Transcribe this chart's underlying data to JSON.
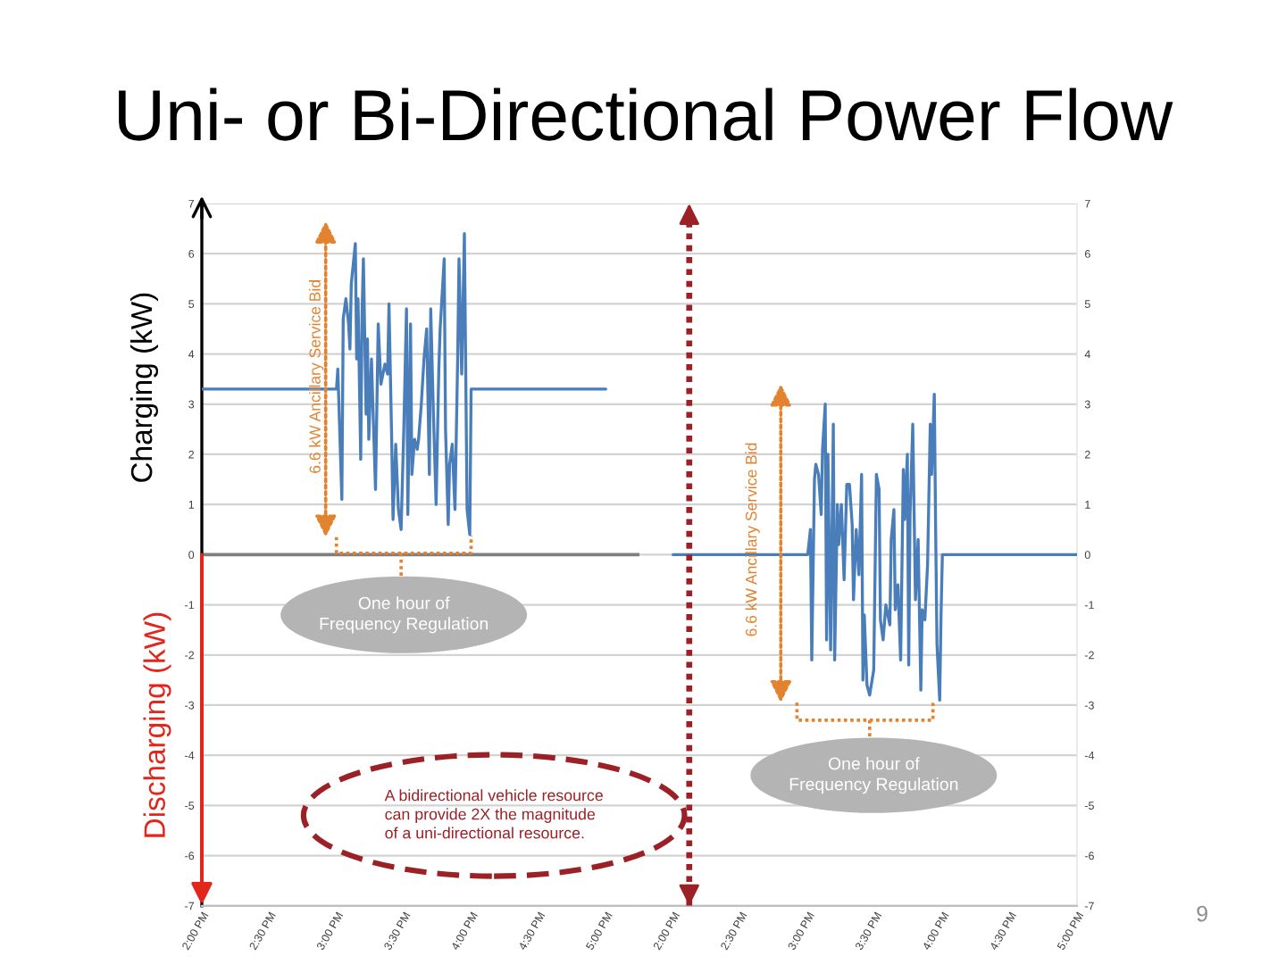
{
  "chart_data": [
    {
      "type": "line",
      "title": "Uni- or Bi-Directional Power Flow",
      "ylabel": "Charging (kW)",
      "annotations": [
        "6.6 kW Ancillary Service Bid",
        "One hour of\nFrequency Regulation",
        "A bidirectional vehicle resource\ncan provide 2X the magnitude\nof a uni-directional resource.",
        "Discharging (kW)"
      ],
      "x": [
        14,
        15.0,
        15.01,
        15.04,
        15.05,
        15.07,
        15.09,
        15.1,
        15.11,
        15.14,
        15.15,
        15.16,
        15.18,
        15.19,
        15.2,
        15.22,
        15.23,
        15.24,
        15.26,
        15.27,
        15.29,
        15.31,
        15.33,
        15.36,
        15.38,
        15.39,
        15.41,
        15.42,
        15.44,
        15.46,
        15.48,
        15.5,
        15.52,
        15.53,
        15.55,
        15.56,
        15.58,
        15.6,
        15.61,
        15.63,
        15.65,
        15.67,
        15.69,
        15.7,
        15.72,
        15.74,
        15.76,
        15.77,
        15.8,
        15.81,
        15.83,
        15.84,
        15.86,
        15.88,
        15.9,
        15.91,
        15.93,
        15.95,
        15.97,
        15.99,
        16.0,
        17
      ],
      "series": [
        {
          "color": "#4a7ebb",
          "values": [
            3.3,
            3.3,
            3.7,
            1.1,
            4.7,
            5.1,
            4.6,
            4.1,
            5.4,
            6.2,
            3.9,
            5.1,
            1.9,
            4.8,
            5.9,
            2.8,
            4.3,
            2.3,
            3.9,
            3.0,
            1.3,
            4.6,
            3.4,
            3.8,
            3.6,
            5.0,
            2.3,
            0.7,
            2.2,
            0.9,
            0.5,
            2.5,
            4.9,
            0.8,
            4.6,
            1.6,
            2.3,
            2.1,
            2.3,
            3.0,
            3.9,
            4.5,
            1.6,
            4.9,
            2.8,
            1.0,
            3.7,
            4.5,
            5.9,
            2.5,
            0.6,
            1.8,
            2.2,
            0.9,
            3.9,
            5.9,
            3.6,
            6.4,
            0.9,
            0.4,
            3.3,
            3.3
          ]
        }
      ],
      "xlim": [
        14,
        17.25
      ],
      "xticks": [
        {
          "value": 14,
          "label": "2:00 PM"
        },
        {
          "value": 14.5,
          "label": "2:30 PM"
        },
        {
          "value": 15,
          "label": "3:00 PM"
        },
        {
          "value": 15.5,
          "label": "3:30 PM"
        },
        {
          "value": 16,
          "label": "4:00 PM"
        },
        {
          "value": 16.5,
          "label": "4:30 PM"
        },
        {
          "value": 17,
          "label": "5:00 PM"
        }
      ],
      "ylim": [
        -7,
        7
      ],
      "yticks": [
        -7,
        -6,
        -5,
        -4,
        -3,
        -2,
        -1,
        0,
        1,
        2,
        3,
        4,
        5,
        6,
        7
      ],
      "grid": "y",
      "ref_lines": [
        {
          "axis": "y",
          "value": 0,
          "color": "#7f7f7f"
        }
      ]
    },
    {
      "type": "line",
      "annotations": [
        "6.6 kW Ancillary Service Bid",
        "One hour of\nFrequency Regulation",
        "9"
      ],
      "x": [
        14,
        15.0,
        15.02,
        15.03,
        15.05,
        15.06,
        15.08,
        15.1,
        15.11,
        15.13,
        15.14,
        15.15,
        15.17,
        15.19,
        15.2,
        15.22,
        15.23,
        15.25,
        15.27,
        15.29,
        15.31,
        15.33,
        15.34,
        15.36,
        15.38,
        15.4,
        15.41,
        15.42,
        15.44,
        15.46,
        15.49,
        15.51,
        15.53,
        15.54,
        15.56,
        15.58,
        15.61,
        15.62,
        15.64,
        15.65,
        15.67,
        15.69,
        15.71,
        15.72,
        15.74,
        15.75,
        15.76,
        15.78,
        15.8,
        15.82,
        15.84,
        15.85,
        15.87,
        15.89,
        15.91,
        15.92,
        15.94,
        15.95,
        15.96,
        15.98,
        15.99,
        16.0,
        17
      ],
      "series": [
        {
          "color": "#4a7ebb",
          "axis": "y2",
          "values": [
            0,
            0,
            0.5,
            -2.1,
            1.5,
            1.8,
            1.6,
            0.8,
            2.1,
            3.0,
            -1.7,
            2.0,
            -1.9,
            2.6,
            -2.1,
            1.0,
            0.2,
            1.0,
            -0.5,
            1.4,
            1.4,
            0.6,
            -0.9,
            0.5,
            -0.4,
            1.6,
            -2.5,
            -1.2,
            -2.6,
            -2.8,
            -2.3,
            1.6,
            1.3,
            -1.3,
            -1.7,
            -1.0,
            -1.4,
            0.3,
            0.9,
            -1.1,
            -0.6,
            -2.1,
            1.7,
            0.7,
            2.0,
            -2.2,
            0.8,
            2.6,
            -0.9,
            0.3,
            -2.7,
            -1.1,
            -1.3,
            -0.2,
            2.6,
            1.6,
            3.2,
            0.5,
            -1.8,
            -2.9,
            -1.2,
            0,
            0
          ]
        }
      ],
      "xlim": [
        13.75,
        17
      ],
      "xticks": [
        {
          "value": 14,
          "label": "2:00 PM"
        },
        {
          "value": 14.5,
          "label": "2:30 PM"
        },
        {
          "value": 15,
          "label": "3:00 PM"
        },
        {
          "value": 15.5,
          "label": "3:30 PM"
        },
        {
          "value": 16,
          "label": "4:00 PM"
        },
        {
          "value": 16.5,
          "label": "4:30 PM"
        },
        {
          "value": 17,
          "label": "5:00 PM"
        }
      ],
      "y2lim": [
        -7,
        7
      ],
      "y2ticks": [
        -7,
        -6,
        -5,
        -4,
        -3,
        -2,
        -1,
        0,
        1,
        2,
        3,
        4,
        5,
        6,
        7
      ],
      "grid": "y",
      "ref_lines": [
        {
          "axis": "x",
          "value": 14.12,
          "color": "#9c2127",
          "line_style": "dotted"
        }
      ]
    }
  ]
}
